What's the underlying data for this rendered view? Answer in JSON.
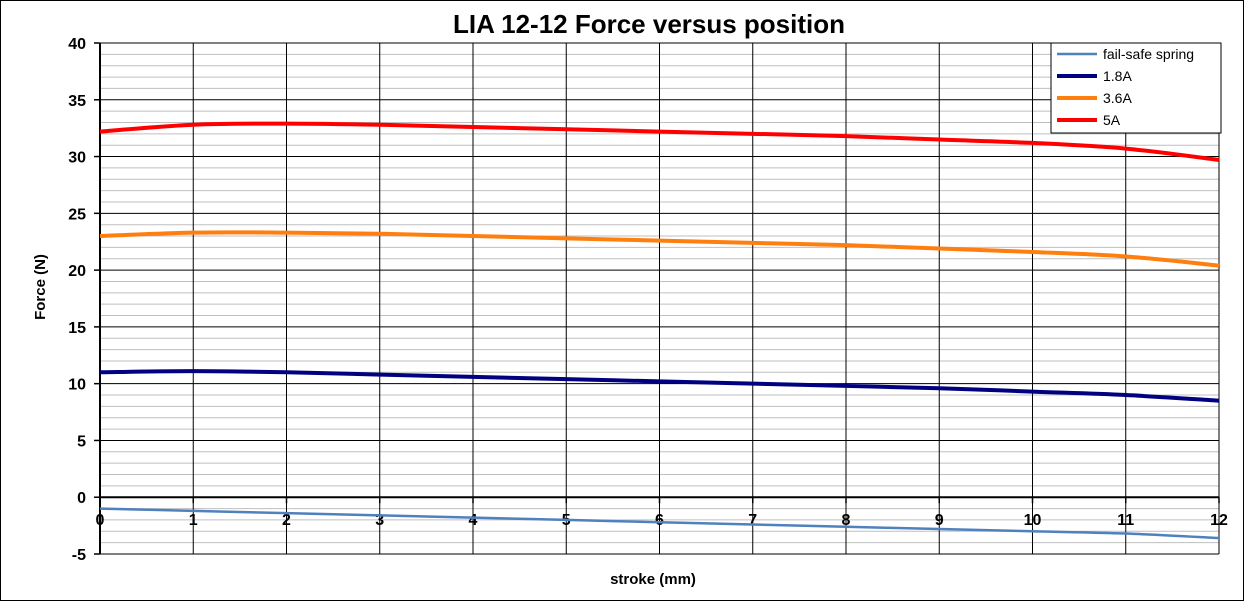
{
  "chart_data": {
    "type": "line",
    "title": "LIA 12-12 Force versus position",
    "xlabel": "stroke (mm)",
    "ylabel": "Force (N)",
    "xlim": [
      0,
      12
    ],
    "ylim": [
      -5,
      40
    ],
    "x_ticks": [
      0,
      1,
      2,
      3,
      4,
      5,
      6,
      7,
      8,
      9,
      10,
      11,
      12
    ],
    "y_ticks": [
      -5,
      0,
      5,
      10,
      15,
      20,
      25,
      30,
      35,
      40
    ],
    "grid": true,
    "legend_position": "top-right",
    "x": [
      0,
      1,
      2,
      3,
      4,
      5,
      6,
      7,
      8,
      9,
      10,
      11,
      12
    ],
    "series": [
      {
        "name": "fail-safe spring",
        "color": "#4F81BD",
        "values": [
          -1.0,
          -1.2,
          -1.4,
          -1.6,
          -1.8,
          -2.0,
          -2.2,
          -2.4,
          -2.6,
          -2.8,
          -3.0,
          -3.2,
          -3.6
        ]
      },
      {
        "name": "1.8A",
        "color": "#000080",
        "values": [
          11.0,
          11.1,
          11.0,
          10.8,
          10.6,
          10.4,
          10.2,
          10.0,
          9.8,
          9.6,
          9.3,
          9.0,
          8.5
        ]
      },
      {
        "name": "3.6A",
        "color": "#FF7F0E",
        "values": [
          23.0,
          23.3,
          23.3,
          23.2,
          23.0,
          22.8,
          22.6,
          22.4,
          22.2,
          21.9,
          21.6,
          21.2,
          20.4
        ]
      },
      {
        "name": "5A",
        "color": "#FF0000",
        "values": [
          32.2,
          32.8,
          32.9,
          32.8,
          32.6,
          32.4,
          32.2,
          32.0,
          31.8,
          31.5,
          31.2,
          30.7,
          29.7
        ]
      }
    ]
  }
}
